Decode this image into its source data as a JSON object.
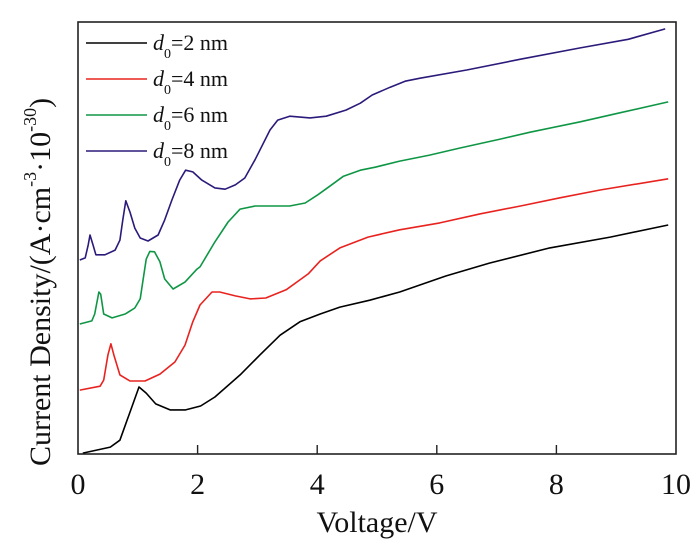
{
  "chart_data": {
    "type": "line",
    "title": "",
    "xlabel": "Voltage/V",
    "ylabel": "Current Density/(A·cm^-3·10^-30)",
    "ylabel_parts": {
      "main": "Current Density/(A·cm",
      "sup1": "-3",
      "mid": "·10",
      "sup2": "-30",
      "end": ")"
    },
    "xlim": [
      0,
      10
    ],
    "ylim": [
      0,
      100
    ],
    "y_units_note": "arbitrary (no y tick labels shown)",
    "xticks": [
      0,
      2,
      4,
      6,
      8,
      10
    ],
    "xtick_labels": [
      "0",
      "2",
      "4",
      "6",
      "8",
      "10"
    ],
    "grid": false,
    "legend_position": "top-left",
    "series": [
      {
        "name": "d0=2 nm",
        "label_main": "d",
        "label_sub": "0",
        "label_rest": "=2 nm",
        "color": "#000000",
        "x": [
          0.08,
          0.54,
          0.7,
          0.87,
          1.02,
          1.14,
          1.3,
          1.54,
          1.8,
          2.05,
          2.29,
          2.71,
          3.04,
          3.38,
          3.71,
          4.05,
          4.38,
          4.88,
          5.38,
          6.15,
          6.88,
          7.89,
          8.9,
          9.87
        ],
        "y": [
          0.2,
          1.6,
          3.2,
          9.7,
          15.5,
          14.1,
          11.6,
          10.2,
          10.2,
          11.1,
          13.2,
          18.3,
          22.9,
          27.5,
          30.6,
          32.4,
          34.0,
          35.6,
          37.5,
          41.2,
          44.2,
          47.7,
          50.2,
          53.0
        ]
      },
      {
        "name": "d0=4 nm",
        "label_main": "d",
        "label_sub": "0",
        "label_rest": "=4 nm",
        "color": "#e8231f",
        "x": [
          0.03,
          0.37,
          0.43,
          0.5,
          0.55,
          0.6,
          0.7,
          0.87,
          1.12,
          1.37,
          1.62,
          1.79,
          1.92,
          2.04,
          2.24,
          2.37,
          2.63,
          2.88,
          3.14,
          3.48,
          3.71,
          3.85,
          4.05,
          4.38,
          4.85,
          5.38,
          6.05,
          6.73,
          7.4,
          8.06,
          8.73,
          9.87
        ],
        "y": [
          14.8,
          15.7,
          17.1,
          22.9,
          25.5,
          22.9,
          18.3,
          16.9,
          16.9,
          18.5,
          21.3,
          25.2,
          30.6,
          34.5,
          37.5,
          37.5,
          36.6,
          35.9,
          36.1,
          38.0,
          40.3,
          41.7,
          44.7,
          47.7,
          50.2,
          51.9,
          53.5,
          55.6,
          57.4,
          59.3,
          61.1,
          63.7
        ]
      },
      {
        "name": "d0=6 nm",
        "label_main": "d",
        "label_sub": "0",
        "label_rest": "=6 nm",
        "color": "#0f9645",
        "x": [
          0.03,
          0.23,
          0.28,
          0.35,
          0.38,
          0.43,
          0.57,
          0.79,
          0.95,
          1.04,
          1.09,
          1.14,
          1.2,
          1.28,
          1.37,
          1.45,
          1.59,
          1.79,
          1.99,
          2.04,
          2.29,
          2.51,
          2.71,
          2.96,
          3.21,
          3.54,
          3.8,
          4.01,
          4.21,
          4.44,
          4.72,
          4.97,
          5.38,
          5.88,
          6.38,
          7.06,
          7.56,
          8.4,
          9.07,
          9.87
        ],
        "y": [
          30.1,
          30.8,
          32.4,
          37.5,
          37.0,
          32.4,
          31.5,
          32.4,
          33.8,
          35.9,
          40.5,
          45.1,
          46.9,
          46.8,
          44.5,
          40.5,
          38.2,
          39.8,
          42.8,
          43.3,
          49.1,
          53.7,
          56.7,
          57.4,
          57.4,
          57.4,
          58.1,
          60.0,
          62.0,
          64.3,
          65.7,
          66.4,
          67.8,
          69.2,
          70.8,
          72.9,
          74.5,
          76.9,
          79.0,
          81.5
        ]
      },
      {
        "name": "d0=8 nm",
        "label_main": "d",
        "label_sub": "0",
        "label_rest": "=8 nm",
        "color": "#2c1a7a",
        "x": [
          0.03,
          0.12,
          0.17,
          0.2,
          0.25,
          0.3,
          0.45,
          0.62,
          0.7,
          0.75,
          0.8,
          0.87,
          0.95,
          1.04,
          1.17,
          1.34,
          1.45,
          1.57,
          1.7,
          1.8,
          1.92,
          2.07,
          2.29,
          2.46,
          2.63,
          2.79,
          2.96,
          3.21,
          3.34,
          3.54,
          3.88,
          4.15,
          4.48,
          4.72,
          4.92,
          5.22,
          5.47,
          5.72,
          6.5,
          7.4,
          8.4,
          9.2,
          9.82
        ],
        "y": [
          44.9,
          45.4,
          48.4,
          50.7,
          48.4,
          46.1,
          46.1,
          47.2,
          49.5,
          54.2,
          58.6,
          56.0,
          52.3,
          50.0,
          49.3,
          50.7,
          54.2,
          58.8,
          63.4,
          65.7,
          65.3,
          63.4,
          61.6,
          61.3,
          62.3,
          63.9,
          68.1,
          75.0,
          77.3,
          78.2,
          77.8,
          78.2,
          79.6,
          81.2,
          83.1,
          84.9,
          86.3,
          87.0,
          88.9,
          91.4,
          94.0,
          96.0,
          98.4
        ]
      }
    ]
  }
}
